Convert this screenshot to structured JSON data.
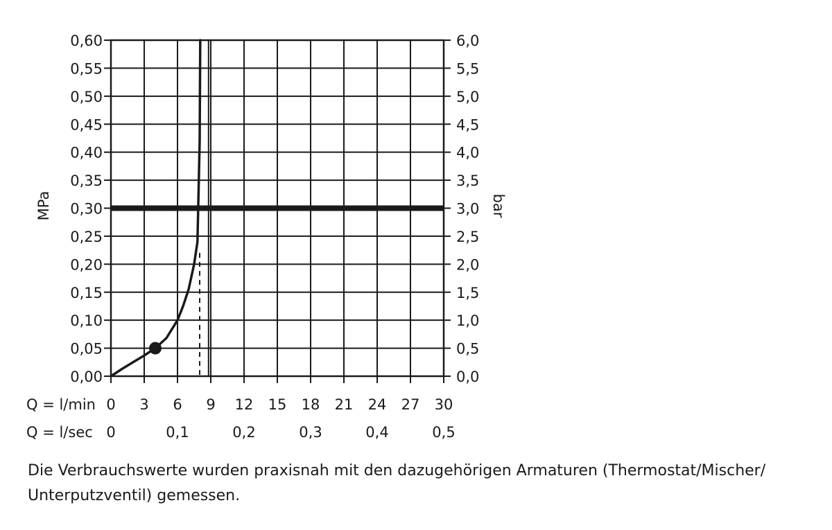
{
  "chart_data": {
    "type": "line",
    "ylabel_left": "MPa",
    "ylabel_right": "bar",
    "ylim": [
      0,
      0.6
    ],
    "xlim": [
      0,
      30
    ],
    "y_ticks_left": [
      "0,00",
      "0,05",
      "0,10",
      "0,15",
      "0,20",
      "0,25",
      "0,30",
      "0,35",
      "0,40",
      "0,45",
      "0,50",
      "0,55",
      "0,60"
    ],
    "y_ticks_right": [
      "0,0",
      "0,5",
      "1,0",
      "1,5",
      "2,0",
      "2,5",
      "3,0",
      "3,5",
      "4,0",
      "4,5",
      "5,0",
      "5,5",
      "6,0"
    ],
    "x_axis_primary": {
      "label": "Q = l/min",
      "ticks": [
        "0",
        "3",
        "6",
        "9",
        "12",
        "15",
        "18",
        "21",
        "24",
        "27",
        "30"
      ]
    },
    "x_axis_secondary": {
      "label": "Q = l/sec",
      "ticks": [
        "0",
        "0,1",
        "0,2",
        "0,3",
        "0,4",
        "0,5"
      ]
    },
    "grid": true,
    "series": [
      {
        "x": [
          0,
          1,
          2,
          3,
          4,
          5,
          6,
          6.5,
          7,
          7.5,
          7.8,
          8.0,
          8.05
        ],
        "y": [
          0.0,
          0.013,
          0.025,
          0.037,
          0.05,
          0.068,
          0.1,
          0.125,
          0.155,
          0.2,
          0.24,
          0.42,
          0.6
        ]
      }
    ],
    "marker_point": {
      "x": 4,
      "y": 0.05
    },
    "reference_line": {
      "y": 0.3
    },
    "vertical_line": {
      "x": 8.8
    },
    "dashed_line": {
      "x": 8,
      "y_top": 0.22
    }
  },
  "caption": "Die Verbrauchswerte wurden praxisnah mit den dazugehörigen Armaturen (Thermostat/Mischer/ Unterputzventil) gemessen."
}
